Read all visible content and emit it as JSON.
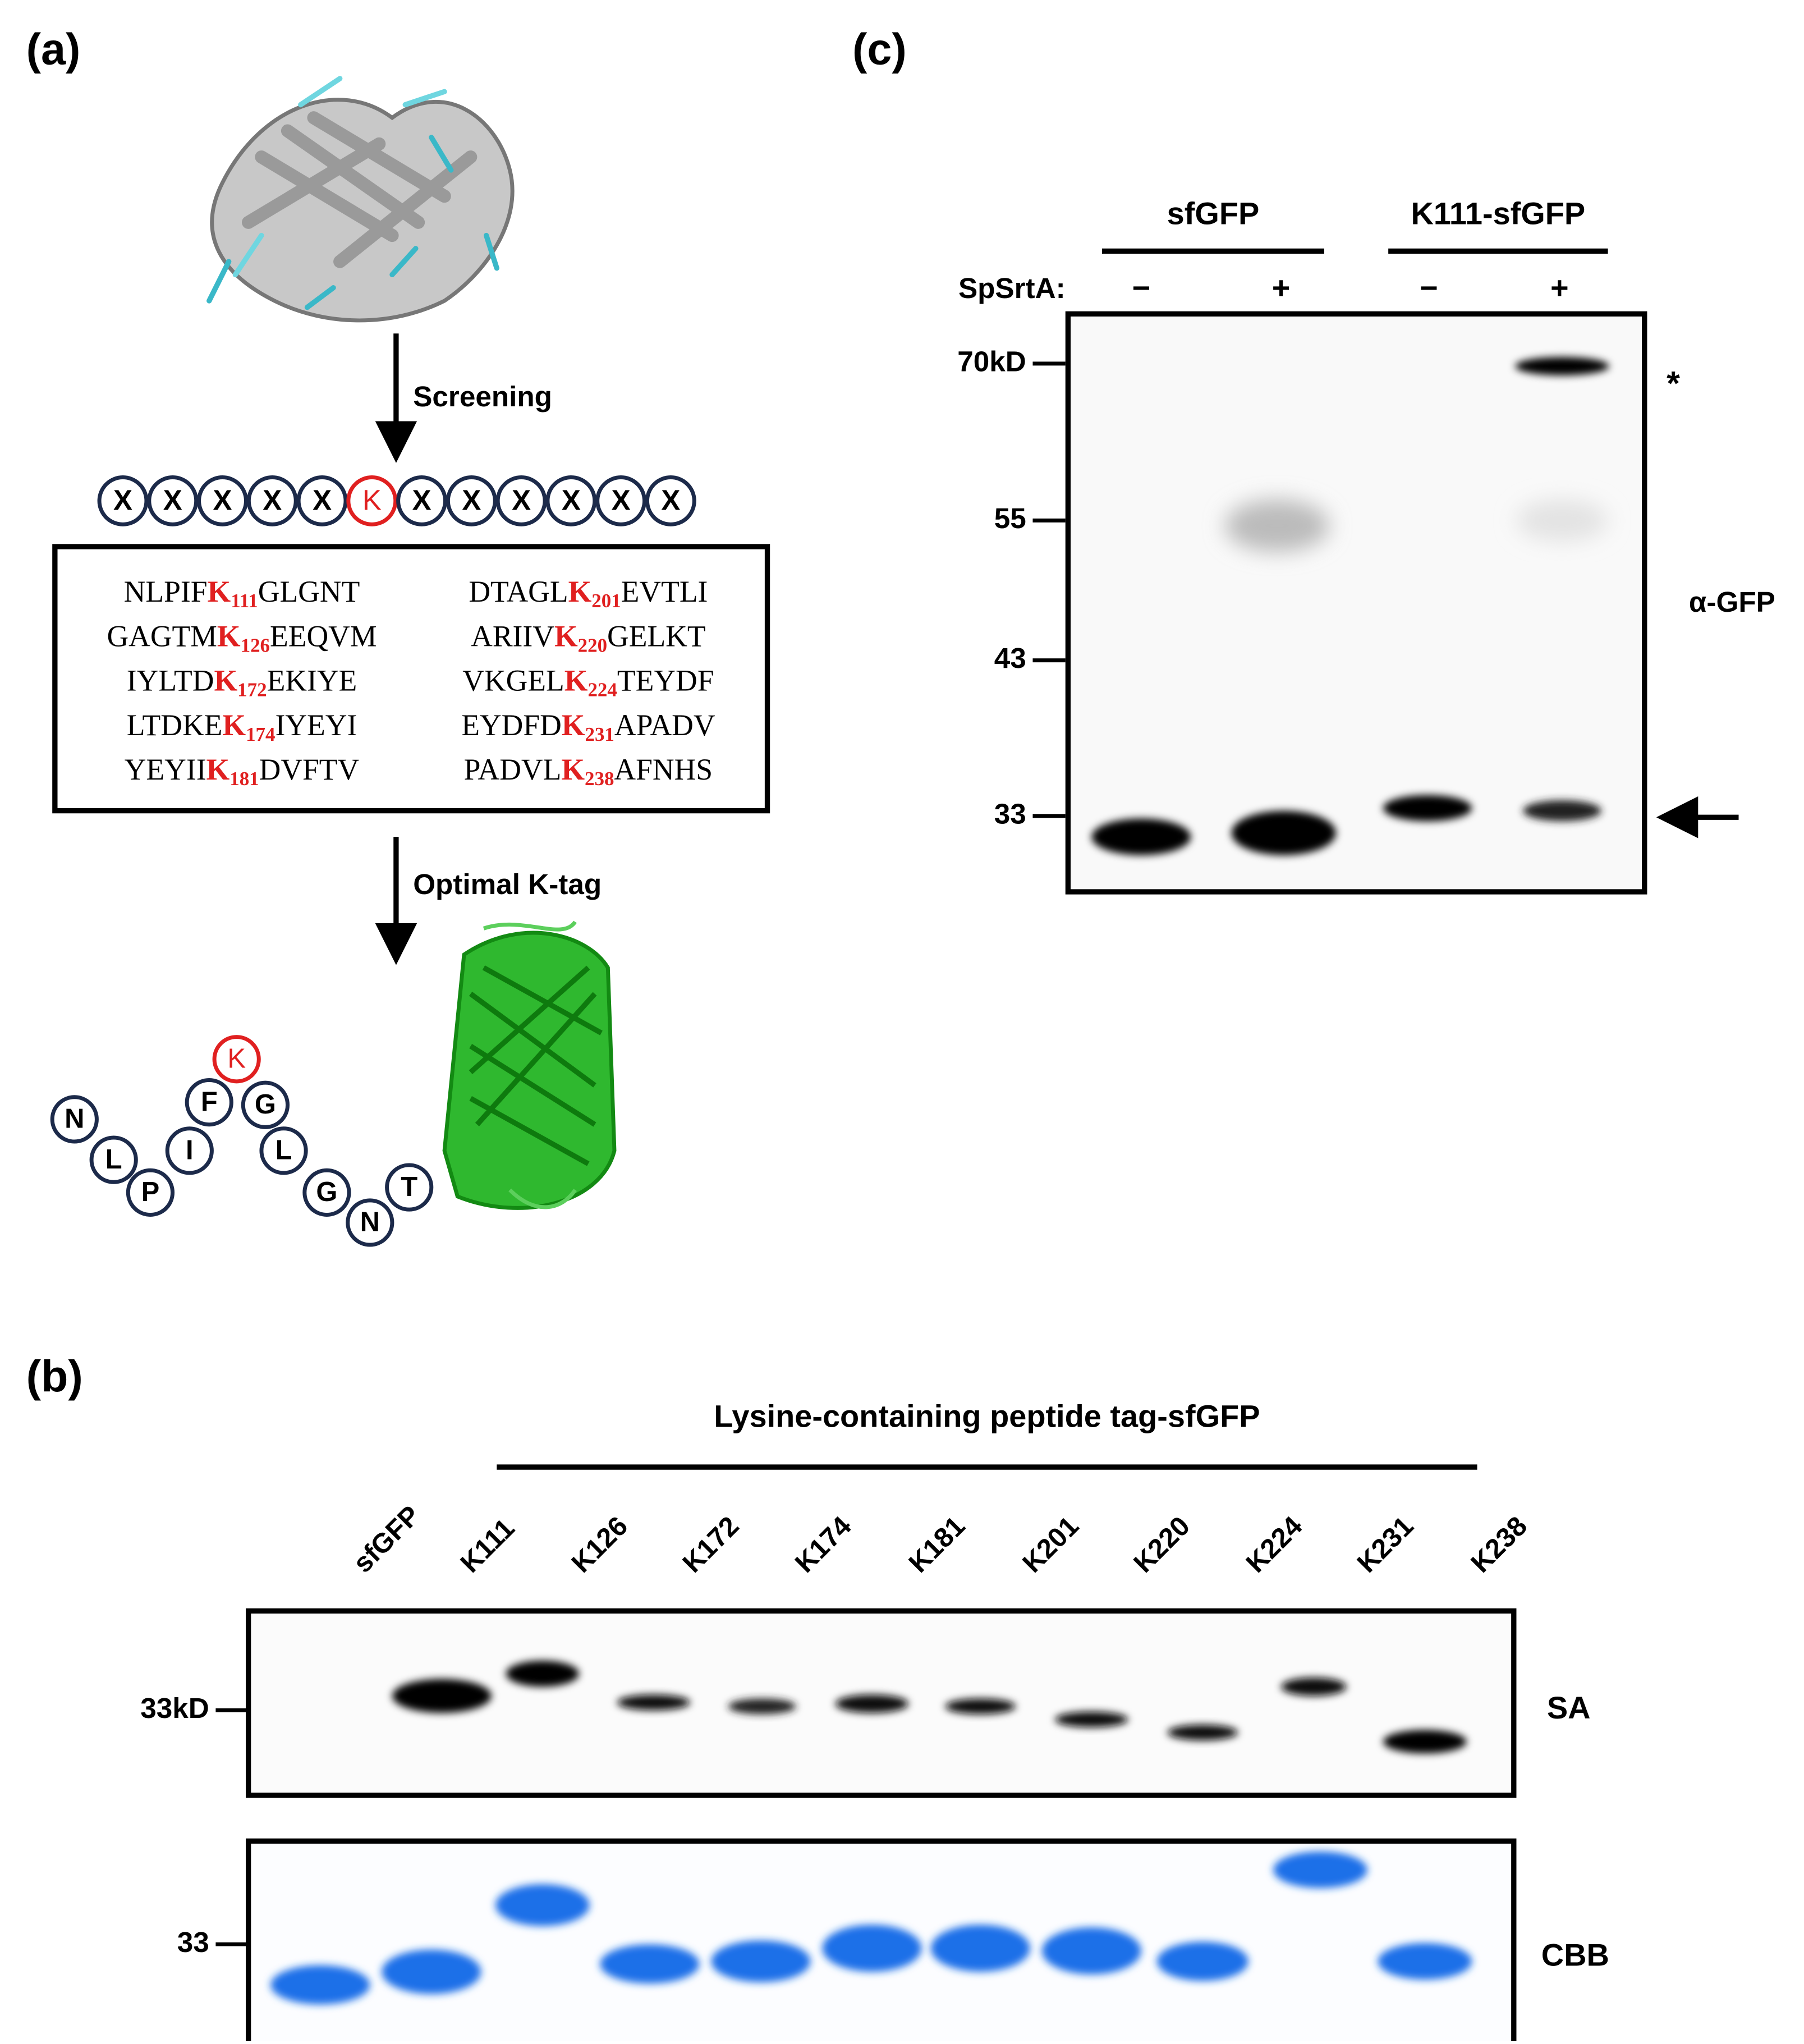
{
  "panel_a": {
    "label": "(a)",
    "screening": "Screening",
    "sequence": [
      "X",
      "X",
      "X",
      "X",
      "X",
      "K",
      "X",
      "X",
      "X",
      "X",
      "X",
      "X"
    ],
    "peptides": [
      {
        "prefix": "NLPIF",
        "residue": "K",
        "position": "111",
        "suffix": "GLGNT"
      },
      {
        "prefix": "DTAGL",
        "residue": "K",
        "position": "201",
        "suffix": "EVTLI"
      },
      {
        "prefix": "GAGTM",
        "residue": "K",
        "position": "126",
        "suffix": "EEQVM"
      },
      {
        "prefix": "ARIIV",
        "residue": "K",
        "position": "220",
        "suffix": "GELKT"
      },
      {
        "prefix": "IYLTD",
        "residue": "K",
        "position": "172",
        "suffix": "EKIYE"
      },
      {
        "prefix": "VKGEL",
        "residue": "K",
        "position": "224",
        "suffix": "TEYDF"
      },
      {
        "prefix": "LTDKE",
        "residue": "K",
        "position": "174",
        "suffix": "IYEYI"
      },
      {
        "prefix": "EYDFD",
        "residue": "K",
        "position": "231",
        "suffix": "APADV"
      },
      {
        "prefix": "YEYII",
        "residue": "K",
        "position": "181",
        "suffix": "DVFTV"
      },
      {
        "prefix": "PADVL",
        "residue": "K",
        "position": "238",
        "suffix": "AFNHS"
      }
    ],
    "optimal": "Optimal K-tag",
    "tag": [
      "N",
      "L",
      "P",
      "I",
      "F",
      "K",
      "G",
      "L",
      "G",
      "N",
      "T"
    ]
  },
  "panel_b": {
    "label": "(b)",
    "header": "Lysine-containing peptide tag-sfGFP",
    "lanes": [
      "sfGFP",
      "K111",
      "K126",
      "K172",
      "K174",
      "K181",
      "K201",
      "K220",
      "K224",
      "K231",
      "K238"
    ],
    "sa_marker": "33kD",
    "cbb_marker": "33",
    "sa_label": "SA",
    "cbb_label": "CBB"
  },
  "panel_c": {
    "label": "(c)",
    "groups": [
      "sfGFP",
      "K111-sfGFP"
    ],
    "enzyme": "SpSrtA:",
    "signs": [
      "−",
      "+",
      "−",
      "+"
    ],
    "markers": [
      "70kD",
      "55",
      "43",
      "33"
    ],
    "antibody": "α-GFP",
    "star": "*"
  }
}
